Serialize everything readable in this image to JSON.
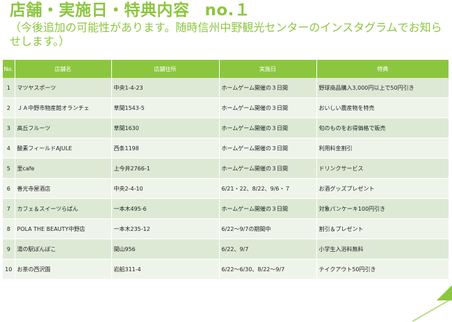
{
  "title": {
    "main": "店舗・実施日・特典内容",
    "number": "no.１",
    "subtitle": "（今後追加の可能性があります。随時信州中野観光センターのインスタグラムでお知らせします。）"
  },
  "table": {
    "headers": [
      "No.",
      "店舗名",
      "店舗住所",
      "実施日",
      "特典"
    ],
    "rows": [
      [
        "1",
        "マツヤスポーツ",
        "中央1-4-23",
        "ホームゲーム開催の３日間",
        "野球商品購入3,000円以上で50円引き"
      ],
      [
        "2",
        "ＪＡ中野市物産館オランチェ",
        "草間1543-5",
        "ホームゲーム開催の３日間",
        "おいしい農産物を特売"
      ],
      [
        "3",
        "高丘フルーツ",
        "草間1630",
        "ホームゲーム開催の３日間",
        "旬のものをお得価格で販売"
      ],
      [
        "4",
        "酸素フィールドAJULE",
        "西条1198",
        "ホームゲーム開催の３日間",
        "利用料金割引"
      ],
      [
        "5",
        "里cafe",
        "上今井2766-1",
        "ホームゲーム開催の３日間",
        "ドリンクサービス"
      ],
      [
        "6",
        "善光寺屋酒店",
        "中央2-4-10",
        "6/21・22、8/22、9/6・７",
        "お酒グッズプレゼント"
      ],
      [
        "7",
        "カフェ＆スイーツらぱん",
        "一本木495-6",
        "ホームゲーム開催の３日間",
        "対象パンケーキ100円引き"
      ],
      [
        "8",
        "POLA THE BEAUTY中野店",
        "一本木235-12",
        "6/22～9/7の期間中",
        "割引＆プレゼント"
      ],
      [
        "9",
        "湯の駅ぽんぽこ",
        "間山956",
        "6/22、9/7",
        "小学生入浴料無料"
      ],
      [
        "10",
        "お茶の西沢園",
        "岩船311-4",
        "6/22～6/30、8/22～9/7",
        "テイクアウト50円引き"
      ]
    ]
  },
  "colors": {
    "accent": "#8cc63f",
    "row_odd": "#dde9d5",
    "row_even": "#eef4ea"
  }
}
